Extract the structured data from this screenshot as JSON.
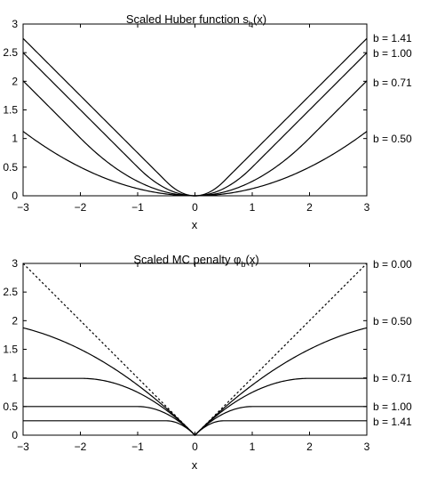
{
  "chart_data": [
    {
      "type": "line",
      "title": "Scaled Huber function s",
      "title_sub": "b",
      "title_tail": "(x)",
      "xlabel": "x",
      "ylabel": "",
      "xlim": [
        -3,
        3
      ],
      "ylim": [
        0,
        3
      ],
      "xticks": [
        "−3",
        "−2",
        "−1",
        "0",
        "1",
        "2",
        "3"
      ],
      "yticks": [
        "0",
        "0.5",
        "1",
        "1.5",
        "2",
        "2.5",
        "3"
      ],
      "series": [
        {
          "name": "b = 1.41",
          "b": 1.41,
          "style": "solid",
          "x": [
            -3,
            -2,
            -1,
            -0.5,
            0,
            0.5,
            1,
            2,
            3
          ],
          "y": [
            2.75,
            1.75,
            0.75,
            0.25,
            0,
            0.25,
            0.75,
            1.75,
            2.75
          ]
        },
        {
          "name": "b = 1.00",
          "b": 1.0,
          "style": "solid",
          "x": [
            -3,
            -2,
            -1,
            -0.5,
            0,
            0.5,
            1,
            2,
            3
          ],
          "y": [
            2.5,
            1.5,
            0.5,
            0.13,
            0,
            0.13,
            0.5,
            1.5,
            2.5
          ]
        },
        {
          "name": "b = 0.71",
          "b": 0.71,
          "style": "solid",
          "x": [
            -3,
            -2,
            -1,
            -0.5,
            0,
            0.5,
            1,
            2,
            3
          ],
          "y": [
            2.0,
            1.0,
            0.25,
            0.06,
            0,
            0.06,
            0.25,
            1.0,
            2.0
          ]
        },
        {
          "name": "b = 0.50",
          "b": 0.5,
          "style": "solid",
          "x": [
            -3,
            -2,
            -1,
            -0.5,
            0,
            0.5,
            1,
            2,
            3
          ],
          "y": [
            1.13,
            0.5,
            0.13,
            0.03,
            0,
            0.03,
            0.13,
            0.5,
            1.13
          ]
        }
      ]
    },
    {
      "type": "line",
      "title": "Scaled MC penalty φ",
      "title_sub": "b",
      "title_tail": "(x)",
      "xlabel": "x",
      "ylabel": "",
      "xlim": [
        -3,
        3
      ],
      "ylim": [
        0,
        3
      ],
      "xticks": [
        "−3",
        "−2",
        "−1",
        "0",
        "1",
        "2",
        "3"
      ],
      "yticks": [
        "0",
        "0.5",
        "1",
        "1.5",
        "2",
        "2.5",
        "3"
      ],
      "series": [
        {
          "name": "b = 0.00",
          "b": 0.0,
          "style": "dotted",
          "x": [
            -3,
            0,
            3
          ],
          "y": [
            3,
            0,
            3
          ]
        },
        {
          "name": "b = 0.50",
          "b": 0.5,
          "style": "solid",
          "x": [
            -3,
            -2,
            -1,
            0,
            1,
            2,
            3
          ],
          "y": [
            1.88,
            1.5,
            0.88,
            0,
            0.88,
            1.5,
            1.88
          ]
        },
        {
          "name": "b = 0.71",
          "b": 0.71,
          "style": "solid",
          "x": [
            -3,
            -2,
            -1,
            0,
            1,
            2,
            3
          ],
          "y": [
            1.0,
            1.0,
            0.75,
            0,
            0.75,
            1.0,
            1.0
          ]
        },
        {
          "name": "b = 1.00",
          "b": 1.0,
          "style": "solid",
          "x": [
            -3,
            -2,
            -1,
            0,
            1,
            2,
            3
          ],
          "y": [
            0.5,
            0.5,
            0.5,
            0,
            0.5,
            0.5,
            0.5
          ]
        },
        {
          "name": "b = 1.41",
          "b": 1.41,
          "style": "solid",
          "x": [
            -3,
            -2,
            -1,
            0,
            1,
            2,
            3
          ],
          "y": [
            0.25,
            0.25,
            0.25,
            0,
            0.25,
            0.25,
            0.25
          ]
        }
      ]
    }
  ]
}
